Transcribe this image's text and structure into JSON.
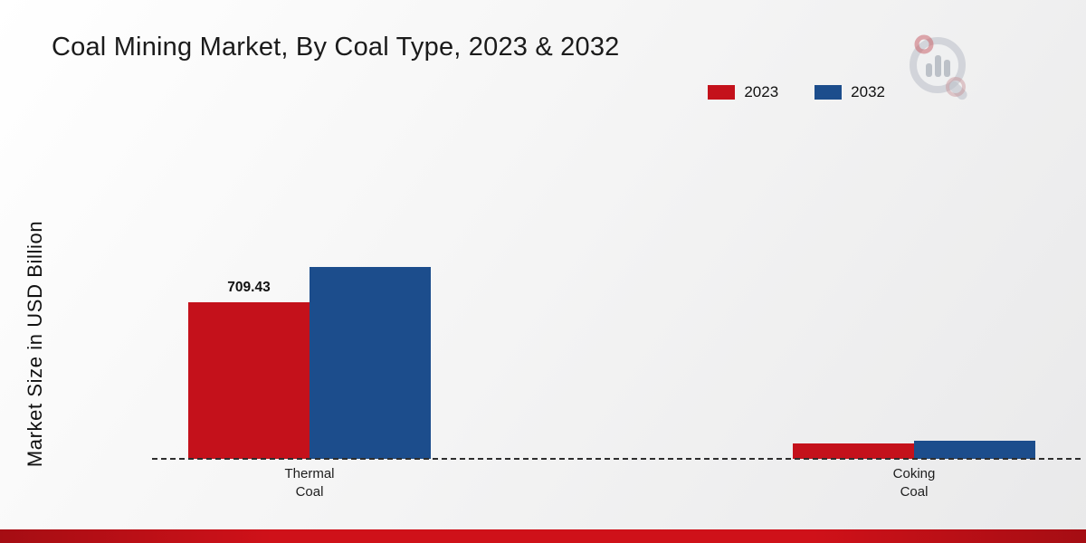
{
  "title": "Coal Mining Market, By Coal Type, 2023 & 2032",
  "ylabel": "Market Size in USD Billion",
  "colors": {
    "red_2023": "#c4111b",
    "blue_2032": "#1c4d8c",
    "footer_stripe_dark": "#a50d13",
    "footer_stripe_light": "#cf1119",
    "baseline": "#2e2e2e",
    "background_start": "#ffffff",
    "background_end": "#e9e9ea"
  },
  "icons": {
    "brand_logo": "magnifier-bar-chart-icon"
  },
  "chart_data": {
    "type": "bar",
    "title": "Coal Mining Market, By Coal Type, 2023 & 2032",
    "xlabel": "",
    "ylabel": "Market Size in USD Billion",
    "categories": [
      "Thermal Coal",
      "Coking Coal"
    ],
    "series": [
      {
        "name": "2023",
        "color": "#c4111b",
        "values": [
          709.43,
          70
        ]
      },
      {
        "name": "2032",
        "color": "#1c4d8c",
        "values": [
          866,
          82
        ]
      }
    ],
    "data_labels": [
      {
        "series_index": 0,
        "category_index": 0,
        "text": "709.43"
      }
    ],
    "ylim": [
      0,
      900
    ],
    "grid": false,
    "legend": [
      "2023",
      "2032"
    ],
    "legend_position": "top-right",
    "baseline_style": "dashed"
  }
}
